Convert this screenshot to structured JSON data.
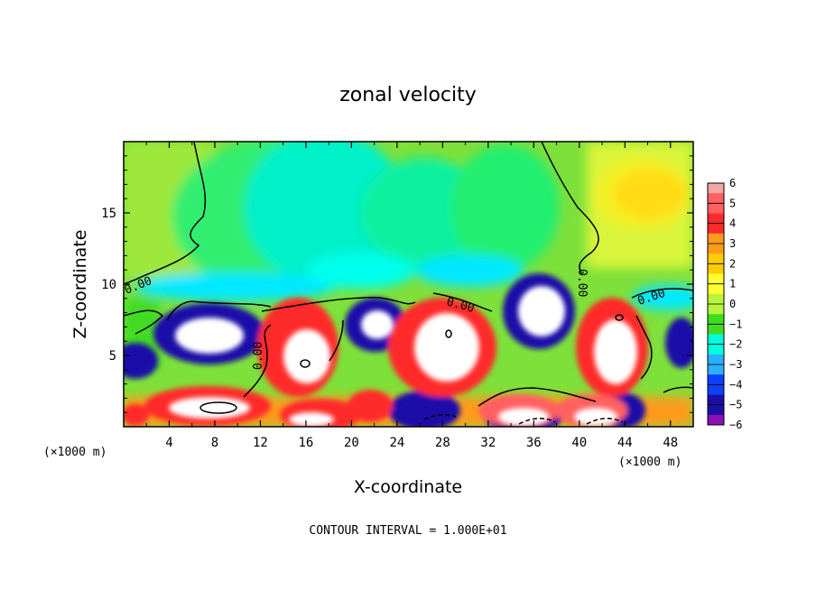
{
  "chart_data": {
    "type": "heatmap",
    "title": "zonal velocity",
    "xlabel": "X-coordinate",
    "ylabel": "Z-coordinate",
    "x_scale_note_left": "(×1000 m)",
    "x_scale_note_right": "(×1000 m)",
    "xlim": [
      0,
      50
    ],
    "ylim": [
      0,
      20
    ],
    "x_ticks": [
      4,
      8,
      12,
      16,
      20,
      24,
      28,
      32,
      36,
      40,
      44,
      48
    ],
    "x_tick_labels": [
      "4",
      "8",
      "12",
      "16",
      "20",
      "24",
      "28",
      "32",
      "36",
      "40",
      "44",
      "48"
    ],
    "y_ticks": [
      5,
      10,
      15
    ],
    "y_tick_labels": [
      "5",
      "10",
      "15"
    ],
    "colorbar": {
      "min": -6,
      "max": 6,
      "tick_labels": [
        "6",
        "5",
        "4",
        "3",
        "2",
        "1",
        "0",
        "−1",
        "−2",
        "−3",
        "−4",
        "−5",
        "−6"
      ],
      "colors": [
        "#f2a7a7",
        "#ff6060",
        "#ff2a2a",
        "#ff9a1a",
        "#ffcc00",
        "#ffff30",
        "#b8f53a",
        "#40dc20",
        "#00ffdd",
        "#2ab0ff",
        "#0f40ff",
        "#1a10a8",
        "#8a10b8"
      ]
    },
    "contour_labels": [
      "0.00",
      "0.00",
      "0.00",
      "0.00",
      "0.00",
      "0.00"
    ],
    "footer": "CONTOUR INTERVAL = 1.000E+01"
  }
}
